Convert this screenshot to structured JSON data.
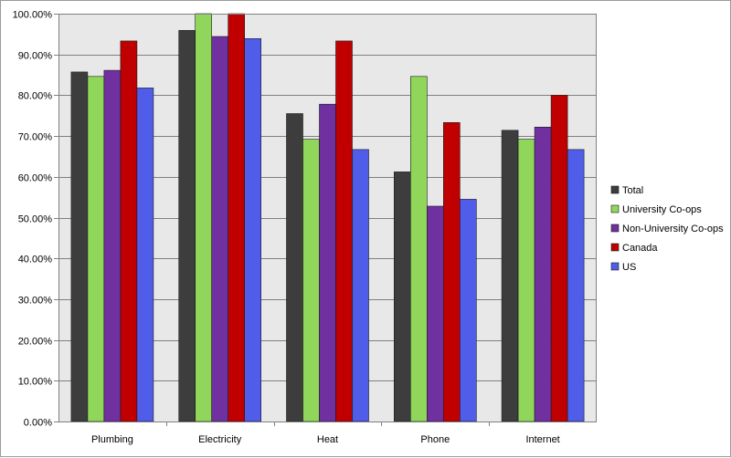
{
  "chart_data": {
    "type": "bar",
    "title": "",
    "xlabel": "",
    "ylabel": "",
    "categories": [
      "Plumbing",
      "Electricity",
      "Heat",
      "Phone",
      "Internet"
    ],
    "ylim": [
      0,
      1
    ],
    "y_ticks": [
      {
        "value": 0.0,
        "label": "0.00%"
      },
      {
        "value": 0.1,
        "label": "10.00%"
      },
      {
        "value": 0.2,
        "label": "20.00%"
      },
      {
        "value": 0.3,
        "label": "30.00%"
      },
      {
        "value": 0.4,
        "label": "40.00%"
      },
      {
        "value": 0.5,
        "label": "50.00%"
      },
      {
        "value": 0.6,
        "label": "60.00%"
      },
      {
        "value": 0.7,
        "label": "70.00%"
      },
      {
        "value": 0.8,
        "label": "80.00%"
      },
      {
        "value": 0.9,
        "label": "90.00%"
      },
      {
        "value": 1.0,
        "label": "100.00%"
      }
    ],
    "grid": true,
    "legend_position": "right",
    "plot_background": "#e8e8e8",
    "series": [
      {
        "name": "Total",
        "color": "#3d3d3d",
        "values": [
          0.857,
          0.959,
          0.755,
          0.612,
          0.714
        ]
      },
      {
        "name": "University Co-ops",
        "color": "#8fd65a",
        "values": [
          0.846,
          1.0,
          0.692,
          0.846,
          0.692
        ]
      },
      {
        "name": "Non-University Co-ops",
        "color": "#7030a0",
        "values": [
          0.861,
          0.944,
          0.778,
          0.528,
          0.722
        ]
      },
      {
        "name": "Canada",
        "color": "#c00000",
        "values": [
          0.933,
          1.0,
          0.933,
          0.733,
          0.8
        ]
      },
      {
        "name": "US",
        "color": "#4f5de8",
        "values": [
          0.818,
          0.939,
          0.667,
          0.545,
          0.667
        ]
      }
    ]
  }
}
